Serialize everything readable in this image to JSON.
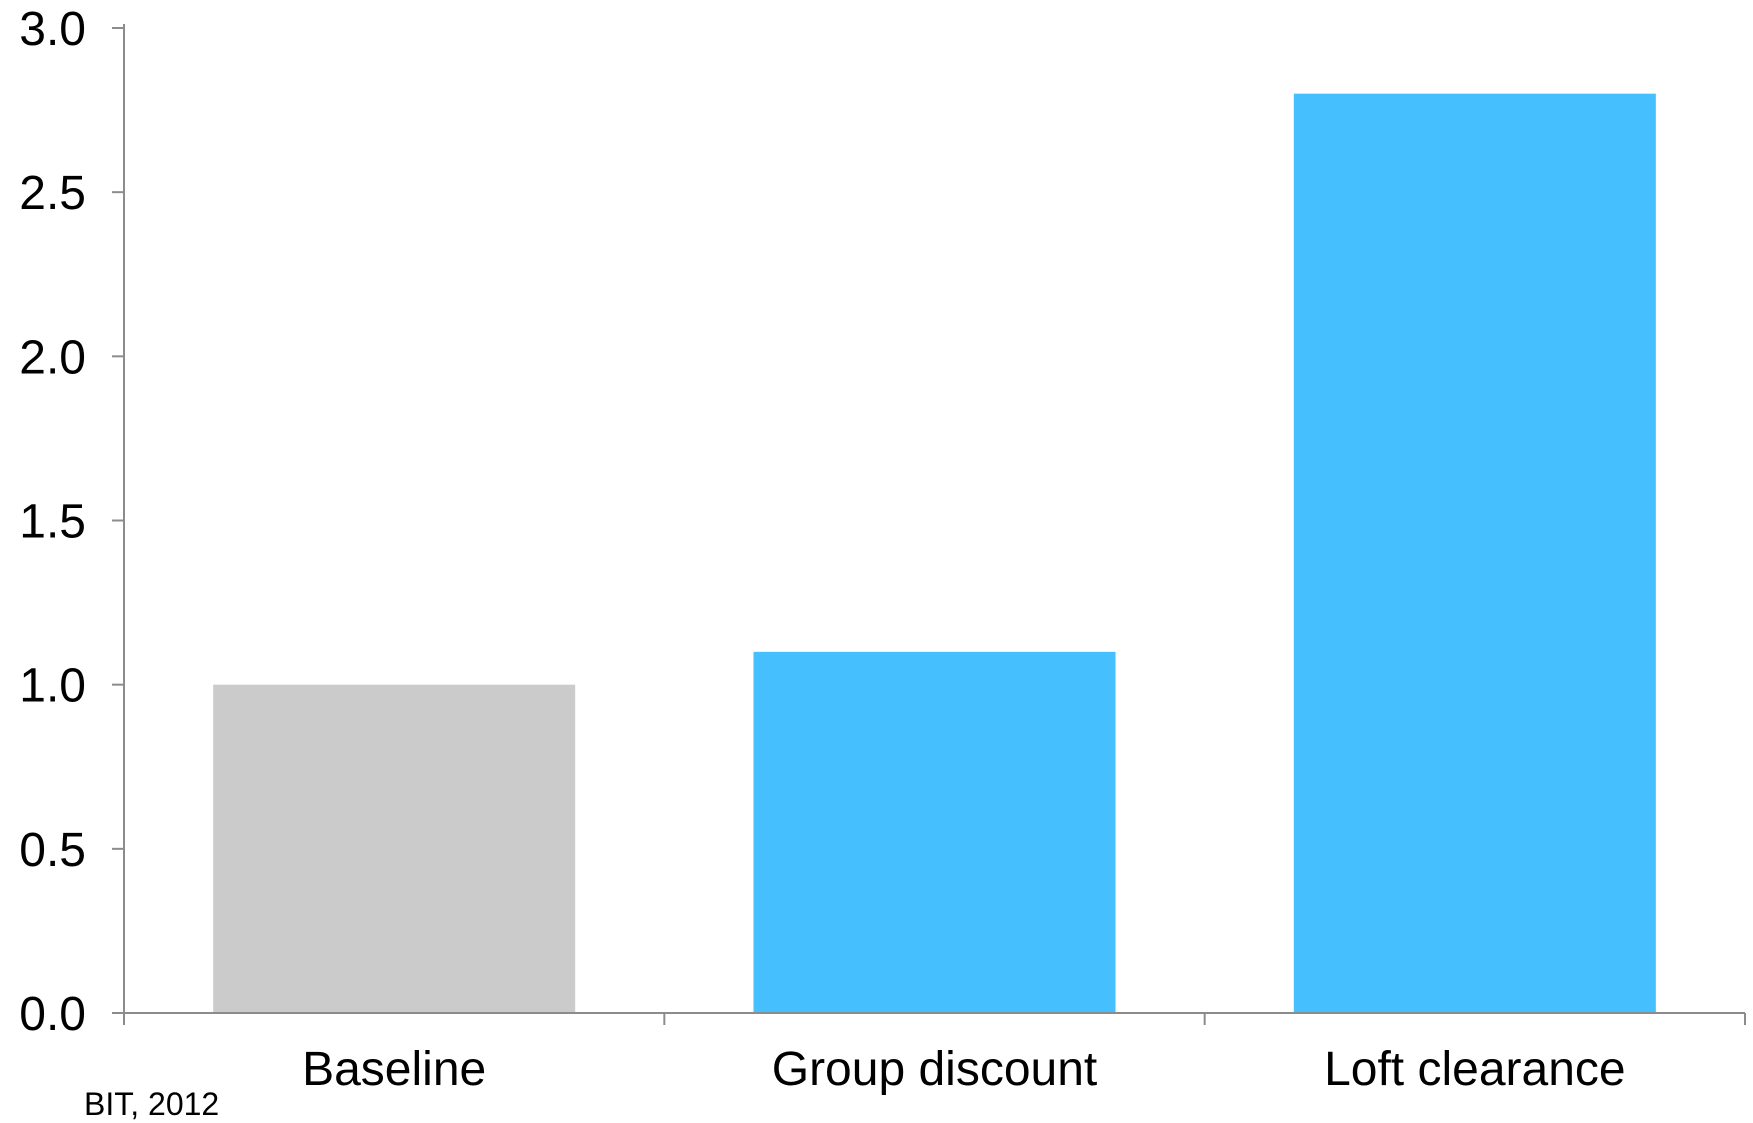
{
  "chart_data": {
    "type": "bar",
    "title": "",
    "xlabel": "",
    "ylabel": "",
    "categories": [
      "Baseline",
      "Group discount",
      "Loft clearance"
    ],
    "values": [
      1.0,
      1.1,
      2.8
    ],
    "bar_colors": [
      "#cbcbcb",
      "#45bffd",
      "#45bffd"
    ],
    "ylim": [
      0,
      3.0
    ],
    "yticks": [
      "0.0",
      "0.5",
      "1.0",
      "1.5",
      "2.0",
      "2.5",
      "3.0"
    ],
    "grid": false,
    "legend": "none",
    "axis_color": "#8c8c8c"
  },
  "source_note": "BIT, 2012"
}
